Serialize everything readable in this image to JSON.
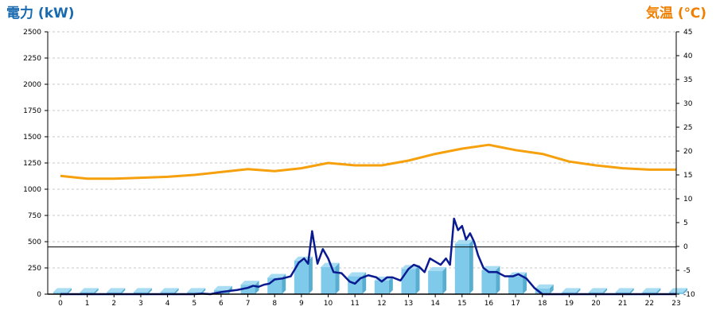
{
  "chart_data": {
    "type": "bar",
    "left_axis": {
      "label": "電力 (kW)",
      "min": 0,
      "max": 2500,
      "ticks": [
        0,
        250,
        500,
        750,
        1000,
        1250,
        1500,
        1750,
        2000,
        2250,
        2500
      ]
    },
    "right_axis": {
      "label": "気温 (℃)",
      "min": -10,
      "max": 45,
      "ticks": [
        -10,
        -5,
        0,
        5,
        10,
        15,
        20,
        25,
        30,
        35,
        40,
        45
      ]
    },
    "categories": [
      "0",
      "1",
      "2",
      "3",
      "4",
      "5",
      "6",
      "7",
      "8",
      "9",
      "10",
      "11",
      "12",
      "13",
      "14",
      "15",
      "16",
      "17",
      "18",
      "19",
      "20",
      "21",
      "22",
      "23"
    ],
    "bars": [
      20,
      20,
      20,
      20,
      20,
      20,
      40,
      90,
      155,
      320,
      260,
      170,
      130,
      240,
      220,
      480,
      230,
      170,
      55,
      20,
      20,
      20,
      20,
      20
    ],
    "power_line": {
      "x": [
        0,
        1,
        2,
        3,
        4,
        5,
        5.3,
        5.6,
        6,
        6.3,
        6.6,
        7,
        7.2,
        7.4,
        7.6,
        7.8,
        8,
        8.3,
        8.6,
        8.9,
        9.1,
        9.25,
        9.4,
        9.6,
        9.8,
        10,
        10.2,
        10.5,
        10.8,
        11,
        11.2,
        11.5,
        11.8,
        12,
        12.2,
        12.4,
        12.7,
        13,
        13.2,
        13.4,
        13.6,
        13.8,
        14,
        14.2,
        14.4,
        14.55,
        14.7,
        14.85,
        15,
        15.15,
        15.3,
        15.45,
        15.6,
        15.8,
        16,
        16.3,
        16.6,
        16.9,
        17.1,
        17.4,
        17.7,
        18,
        19,
        20,
        21,
        22,
        23
      ],
      "y": [
        0,
        0,
        0,
        0,
        0,
        0,
        5,
        0,
        20,
        30,
        40,
        60,
        80,
        70,
        90,
        100,
        140,
        150,
        170,
        300,
        340,
        290,
        600,
        290,
        430,
        340,
        210,
        200,
        120,
        100,
        150,
        180,
        160,
        120,
        160,
        160,
        130,
        240,
        280,
        260,
        210,
        340,
        310,
        280,
        340,
        280,
        720,
        610,
        650,
        520,
        580,
        500,
        370,
        250,
        210,
        210,
        170,
        170,
        190,
        150,
        60,
        0,
        0,
        0,
        0,
        0,
        0
      ]
    },
    "temperature_line": {
      "x": [
        0,
        1,
        2,
        3,
        4,
        5,
        6,
        7,
        8,
        9,
        10,
        11,
        12,
        13,
        14,
        15,
        16,
        17,
        18,
        19,
        20,
        21,
        22,
        23
      ],
      "y": [
        14.8,
        14.2,
        14.2,
        14.4,
        14.6,
        15,
        15.6,
        16.2,
        15.8,
        16.4,
        17.5,
        17,
        17,
        18,
        19.4,
        20.5,
        21.3,
        20.2,
        19.4,
        17.8,
        17,
        16.4,
        16.1,
        16.1
      ]
    },
    "reference_line_kw": 450,
    "grid": true,
    "colors": {
      "left_title": "#1a6ab0",
      "right_title": "#f07f00",
      "bar": "#7fcaea",
      "bar_side": "#58aed0",
      "bar_top": "#a8dcf2",
      "power_line": "#0a1a90",
      "temperature_line": "#f5a00c",
      "grid": "#c8c8c8"
    }
  }
}
